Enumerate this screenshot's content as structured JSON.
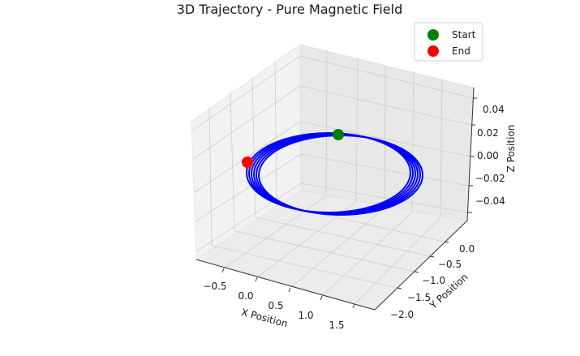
{
  "chart_data": {
    "type": "scatter",
    "subtype": "3d-line",
    "title": "3D Trajectory - Pure Magnetic Field",
    "xlabel": "X Position",
    "ylabel": "Y Position",
    "zlabel": "Z Position",
    "xticks": [
      "−0.5",
      "0.0",
      "0.5",
      "1.0",
      "1.5"
    ],
    "yticks": [
      "0.0",
      "−0.5",
      "−1.0",
      "−1.5",
      "−2.0"
    ],
    "zticks": [
      "0.04",
      "0.02",
      "0.00",
      "−0.02",
      "−0.04"
    ],
    "xlim": [
      -0.85,
      1.85
    ],
    "ylim": [
      -2.3,
      0.3
    ],
    "zlim": [
      -0.055,
      0.055
    ],
    "grid": true,
    "legend": {
      "placement": "top-right"
    },
    "series": [
      {
        "kind": "trajectory",
        "color": "#0000ff",
        "loops": 6,
        "center_x": 0.55,
        "center_y": -1.0,
        "radius": 1.0,
        "z_range": [
          -0.003,
          0.003
        ]
      },
      {
        "name": "Start",
        "kind": "point",
        "color": "#008000",
        "x": 0.55,
        "y": 0.0,
        "z": 0.0
      },
      {
        "name": "End",
        "kind": "point",
        "color": "#ff0000",
        "x": -0.45,
        "y": -1.0,
        "z": 0.0
      }
    ]
  }
}
